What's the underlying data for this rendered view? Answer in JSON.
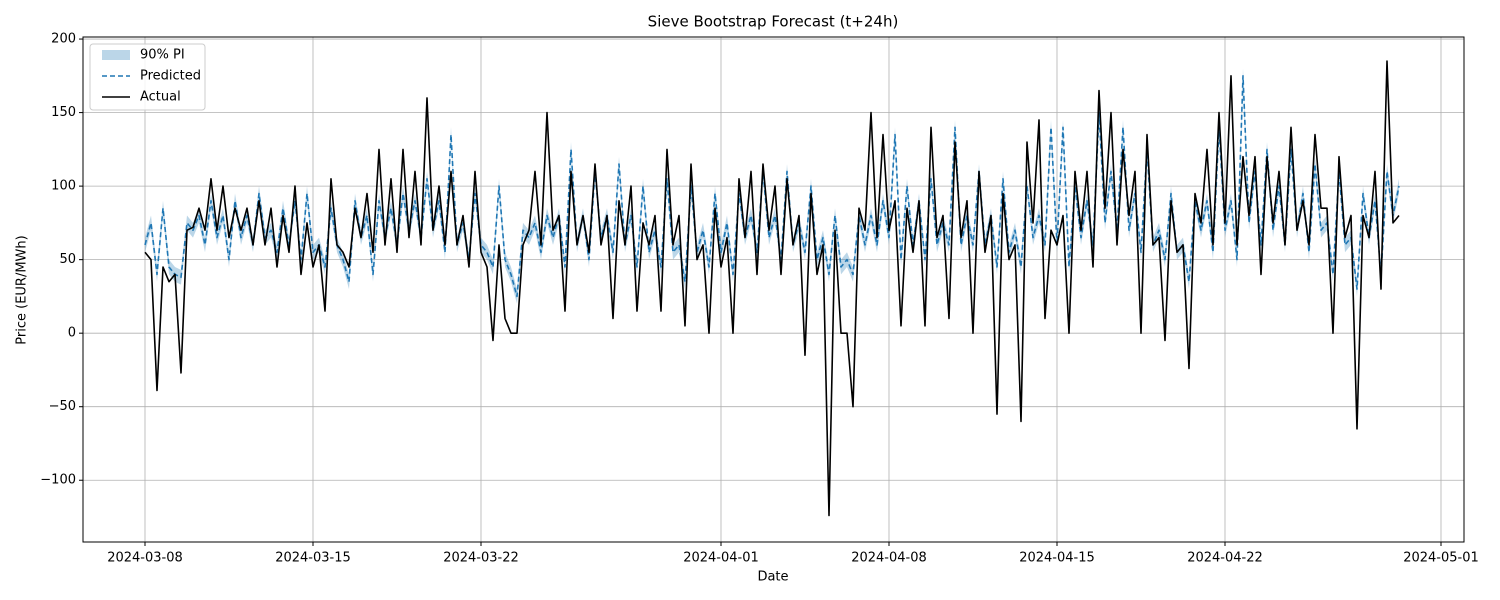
{
  "chart_data": {
    "type": "line",
    "title": "Sieve Bootstrap Forecast (t+24h)",
    "xlabel": "Date",
    "ylabel": "Price (EUR/MWh)",
    "grid": true,
    "legend": "upper left",
    "xlim": [
      "2024-03-05T10",
      "2024-05-01T23"
    ],
    "xticks": [
      "2024-03-08",
      "2024-03-15",
      "2024-03-22",
      "2024-04-01",
      "2024-04-08",
      "2024-04-15",
      "2024-04-22",
      "2024-05-01"
    ],
    "ylim": [
      -142,
      201.4
    ],
    "yticks": [
      {
        "value": -100,
        "label": "−100"
      },
      {
        "value": -50,
        "label": "−50"
      },
      0,
      50,
      100,
      150,
      200
    ],
    "x": [
      "2024-03-08T00",
      "2024-03-08T06",
      "2024-03-08T12",
      "2024-03-08T18",
      "2024-03-09T00",
      "2024-03-09T06",
      "2024-03-09T12",
      "2024-03-09T18",
      "2024-03-10T00",
      "2024-03-10T06",
      "2024-03-10T12",
      "2024-03-10T18",
      "2024-03-11T00",
      "2024-03-11T06",
      "2024-03-11T12",
      "2024-03-11T18",
      "2024-03-12T00",
      "2024-03-12T06",
      "2024-03-12T12",
      "2024-03-12T18",
      "2024-03-13T00",
      "2024-03-13T06",
      "2024-03-13T12",
      "2024-03-13T18",
      "2024-03-14T00",
      "2024-03-14T06",
      "2024-03-14T12",
      "2024-03-14T18",
      "2024-03-15T00",
      "2024-03-15T06",
      "2024-03-15T12",
      "2024-03-15T18",
      "2024-03-16T00",
      "2024-03-16T06",
      "2024-03-16T12",
      "2024-03-16T18",
      "2024-03-17T00",
      "2024-03-17T06",
      "2024-03-17T12",
      "2024-03-17T18",
      "2024-03-18T00",
      "2024-03-18T06",
      "2024-03-18T12",
      "2024-03-18T18",
      "2024-03-19T00",
      "2024-03-19T06",
      "2024-03-19T12",
      "2024-03-19T18",
      "2024-03-20T00",
      "2024-03-20T06",
      "2024-03-20T12",
      "2024-03-20T18",
      "2024-03-21T00",
      "2024-03-21T06",
      "2024-03-21T12",
      "2024-03-21T18",
      "2024-03-22T00",
      "2024-03-22T06",
      "2024-03-22T12",
      "2024-03-22T18",
      "2024-03-23T00",
      "2024-03-23T06",
      "2024-03-23T12",
      "2024-03-23T18",
      "2024-03-24T00",
      "2024-03-24T06",
      "2024-03-24T12",
      "2024-03-24T18",
      "2024-03-25T00",
      "2024-03-25T06",
      "2024-03-25T12",
      "2024-03-25T18",
      "2024-03-26T00",
      "2024-03-26T06",
      "2024-03-26T12",
      "2024-03-26T18",
      "2024-03-27T00",
      "2024-03-27T06",
      "2024-03-27T12",
      "2024-03-27T18",
      "2024-03-28T00",
      "2024-03-28T06",
      "2024-03-28T12",
      "2024-03-28T18",
      "2024-03-29T00",
      "2024-03-29T06",
      "2024-03-29T12",
      "2024-03-29T18",
      "2024-03-30T00",
      "2024-03-30T06",
      "2024-03-30T12",
      "2024-03-30T18",
      "2024-03-31T00",
      "2024-03-31T06",
      "2024-03-31T12",
      "2024-03-31T18",
      "2024-04-01T00",
      "2024-04-01T06",
      "2024-04-01T12",
      "2024-04-01T18",
      "2024-04-02T00",
      "2024-04-02T06",
      "2024-04-02T12",
      "2024-04-02T18",
      "2024-04-03T00",
      "2024-04-03T06",
      "2024-04-03T12",
      "2024-04-03T18",
      "2024-04-04T00",
      "2024-04-04T06",
      "2024-04-04T12",
      "2024-04-04T18",
      "2024-04-05T00",
      "2024-04-05T06",
      "2024-04-05T12",
      "2024-04-05T18",
      "2024-04-06T00",
      "2024-04-06T06",
      "2024-04-06T12",
      "2024-04-06T18",
      "2024-04-07T00",
      "2024-04-07T06",
      "2024-04-07T12",
      "2024-04-07T18",
      "2024-04-08T00",
      "2024-04-08T06",
      "2024-04-08T12",
      "2024-04-08T18",
      "2024-04-09T00",
      "2024-04-09T06",
      "2024-04-09T12",
      "2024-04-09T18",
      "2024-04-10T00",
      "2024-04-10T06",
      "2024-04-10T12",
      "2024-04-10T18",
      "2024-04-11T00",
      "2024-04-11T06",
      "2024-04-11T12",
      "2024-04-11T18",
      "2024-04-12T00",
      "2024-04-12T06",
      "2024-04-12T12",
      "2024-04-12T18",
      "2024-04-13T00",
      "2024-04-13T06",
      "2024-04-13T12",
      "2024-04-13T18",
      "2024-04-14T00",
      "2024-04-14T06",
      "2024-04-14T12",
      "2024-04-14T18",
      "2024-04-15T00",
      "2024-04-15T06",
      "2024-04-15T12",
      "2024-04-15T18",
      "2024-04-16T00",
      "2024-04-16T06",
      "2024-04-16T12",
      "2024-04-16T18",
      "2024-04-17T00",
      "2024-04-17T06",
      "2024-04-17T12",
      "2024-04-17T18",
      "2024-04-18T00",
      "2024-04-18T06",
      "2024-04-18T12",
      "2024-04-18T18",
      "2024-04-19T00",
      "2024-04-19T06",
      "2024-04-19T12",
      "2024-04-19T18",
      "2024-04-20T00",
      "2024-04-20T06",
      "2024-04-20T12",
      "2024-04-20T18",
      "2024-04-21T00",
      "2024-04-21T06",
      "2024-04-21T12",
      "2024-04-21T18",
      "2024-04-22T00",
      "2024-04-22T06",
      "2024-04-22T12",
      "2024-04-22T18",
      "2024-04-23T00",
      "2024-04-23T06",
      "2024-04-23T12",
      "2024-04-23T18",
      "2024-04-24T00",
      "2024-04-24T06",
      "2024-04-24T12",
      "2024-04-24T18",
      "2024-04-25T00",
      "2024-04-25T06",
      "2024-04-25T12",
      "2024-04-25T18",
      "2024-04-26T00",
      "2024-04-26T06",
      "2024-04-26T12",
      "2024-04-26T18",
      "2024-04-27T00",
      "2024-04-27T06",
      "2024-04-27T12",
      "2024-04-27T18",
      "2024-04-28T00",
      "2024-04-28T06",
      "2024-04-28T12",
      "2024-04-28T18",
      "2024-04-29T00",
      "2024-04-29T06"
    ],
    "series": [
      {
        "name": "90% PI",
        "kind": "band",
        "color": "#1f77b4",
        "opacity": 0.3,
        "lower": [
          55,
          70,
          35,
          80,
          40,
          35,
          33,
          70,
          65,
          75,
          55,
          85,
          60,
          75,
          45,
          85,
          60,
          75,
          55,
          90,
          60,
          65,
          50,
          80,
          55,
          85,
          45,
          90,
          50,
          55,
          40,
          80,
          55,
          45,
          30,
          85,
          60,
          75,
          35,
          85,
          60,
          80,
          55,
          90,
          65,
          85,
          60,
          100,
          65,
          85,
          50,
          130,
          55,
          70,
          45,
          90,
          55,
          50,
          40,
          95,
          45,
          35,
          20,
          65,
          60,
          70,
          50,
          75,
          60,
          75,
          40,
          120,
          55,
          75,
          45,
          105,
          60,
          75,
          50,
          110,
          55,
          75,
          40,
          95,
          50,
          65,
          40,
          100,
          50,
          55,
          30,
          95,
          50,
          65,
          40,
          90,
          50,
          70,
          35,
          90,
          60,
          75,
          50,
          105,
          60,
          75,
          45,
          105,
          55,
          70,
          50,
          95,
          45,
          60,
          35,
          75,
          40,
          45,
          35,
          75,
          55,
          75,
          55,
          85,
          60,
          130,
          45,
          95,
          55,
          85,
          45,
          100,
          55,
          70,
          55,
          135,
          55,
          75,
          55,
          105,
          55,
          75,
          40,
          100,
          50,
          65,
          40,
          95,
          60,
          75,
          55,
          135,
          55,
          135,
          40,
          95,
          60,
          85,
          55,
          145,
          70,
          105,
          65,
          135,
          65,
          90,
          50,
          120,
          55,
          65,
          45,
          90,
          50,
          55,
          30,
          85,
          65,
          85,
          50,
          135,
          65,
          85,
          45,
          170,
          70,
          105,
          55,
          120,
          65,
          95,
          55,
          120,
          65,
          90,
          50,
          110,
          65,
          70,
          35,
          105,
          55,
          60,
          25,
          90,
          60,
          85,
          35,
          105,
          75,
          95
        ],
        "upper": [
          65,
          80,
          45,
          90,
          50,
          45,
          43,
          80,
          75,
          85,
          65,
          95,
          70,
          85,
          55,
          95,
          70,
          85,
          65,
          100,
          70,
          75,
          60,
          90,
          65,
          95,
          55,
          100,
          60,
          65,
          50,
          90,
          65,
          55,
          40,
          95,
          70,
          85,
          45,
          95,
          70,
          90,
          65,
          100,
          75,
          95,
          70,
          110,
          75,
          95,
          60,
          140,
          65,
          80,
          55,
          100,
          65,
          60,
          50,
          105,
          55,
          45,
          30,
          75,
          70,
          80,
          60,
          85,
          70,
          85,
          50,
          130,
          65,
          85,
          55,
          115,
          70,
          85,
          60,
          120,
          65,
          85,
          50,
          105,
          60,
          75,
          50,
          110,
          60,
          65,
          40,
          105,
          60,
          75,
          50,
          100,
          60,
          80,
          45,
          100,
          70,
          85,
          60,
          115,
          70,
          85,
          55,
          115,
          65,
          80,
          60,
          105,
          55,
          70,
          45,
          85,
          50,
          55,
          45,
          85,
          65,
          85,
          65,
          95,
          70,
          140,
          55,
          105,
          65,
          95,
          55,
          110,
          65,
          80,
          65,
          145,
          65,
          85,
          65,
          115,
          65,
          85,
          50,
          110,
          60,
          75,
          50,
          105,
          70,
          85,
          65,
          145,
          65,
          145,
          50,
          105,
          70,
          95,
          65,
          155,
          80,
          115,
          75,
          145,
          75,
          100,
          60,
          130,
          65,
          75,
          55,
          100,
          60,
          65,
          40,
          95,
          75,
          95,
          60,
          145,
          75,
          95,
          55,
          180,
          80,
          115,
          65,
          130,
          75,
          105,
          65,
          130,
          75,
          100,
          60,
          120,
          75,
          80,
          45,
          115,
          65,
          70,
          35,
          100,
          70,
          95,
          45,
          115,
          85,
          105
        ]
      },
      {
        "name": "Predicted",
        "kind": "line",
        "dash": true,
        "color": "#1f77b4",
        "values": [
          60,
          75,
          40,
          85,
          45,
          40,
          38,
          75,
          70,
          80,
          60,
          90,
          65,
          80,
          50,
          90,
          65,
          80,
          60,
          95,
          65,
          70,
          55,
          85,
          60,
          90,
          50,
          95,
          55,
          60,
          45,
          85,
          60,
          50,
          35,
          90,
          65,
          80,
          40,
          90,
          65,
          85,
          60,
          95,
          70,
          90,
          65,
          105,
          70,
          90,
          55,
          135,
          60,
          75,
          50,
          95,
          60,
          55,
          45,
          100,
          50,
          40,
          25,
          70,
          65,
          75,
          55,
          80,
          65,
          80,
          45,
          125,
          60,
          80,
          50,
          110,
          65,
          80,
          55,
          115,
          60,
          80,
          45,
          100,
          55,
          70,
          45,
          105,
          55,
          60,
          35,
          100,
          55,
          70,
          45,
          95,
          55,
          75,
          40,
          95,
          65,
          80,
          55,
          110,
          65,
          80,
          50,
          110,
          60,
          75,
          55,
          100,
          50,
          65,
          40,
          80,
          45,
          50,
          40,
          80,
          60,
          80,
          60,
          90,
          65,
          135,
          50,
          100,
          60,
          90,
          50,
          105,
          60,
          75,
          60,
          140,
          60,
          80,
          60,
          110,
          60,
          80,
          45,
          105,
          55,
          70,
          45,
          100,
          65,
          80,
          60,
          140,
          60,
          140,
          45,
          100,
          65,
          90,
          60,
          150,
          75,
          110,
          70,
          140,
          70,
          95,
          55,
          125,
          60,
          70,
          50,
          95,
          55,
          60,
          35,
          90,
          70,
          90,
          55,
          140,
          70,
          90,
          50,
          175,
          75,
          110,
          60,
          125,
          70,
          100,
          60,
          125,
          70,
          95,
          55,
          115,
          70,
          75,
          40,
          110,
          60,
          65,
          30,
          95,
          65,
          90,
          40,
          110,
          80,
          100
        ]
      },
      {
        "name": "Actual",
        "kind": "line",
        "dash": false,
        "color": "#000000",
        "values": [
          55,
          50,
          -39,
          45,
          35,
          40,
          -27,
          70,
          72,
          85,
          70,
          105,
          70,
          100,
          65,
          85,
          70,
          85,
          60,
          90,
          60,
          85,
          45,
          80,
          55,
          100,
          40,
          75,
          45,
          60,
          15,
          105,
          60,
          55,
          45,
          85,
          65,
          95,
          55,
          125,
          60,
          105,
          55,
          125,
          65,
          110,
          60,
          160,
          70,
          100,
          60,
          110,
          60,
          80,
          45,
          110,
          55,
          45,
          -5,
          60,
          10,
          0,
          0,
          60,
          70,
          110,
          60,
          150,
          70,
          80,
          15,
          110,
          60,
          80,
          55,
          115,
          60,
          80,
          10,
          90,
          60,
          100,
          15,
          75,
          60,
          80,
          15,
          125,
          60,
          80,
          5,
          115,
          50,
          60,
          0,
          85,
          45,
          65,
          0,
          105,
          65,
          110,
          40,
          115,
          70,
          100,
          40,
          105,
          60,
          80,
          -15,
          95,
          40,
          60,
          -124,
          70,
          0,
          0,
          -50,
          85,
          70,
          150,
          65,
          135,
          70,
          90,
          5,
          85,
          55,
          90,
          5,
          140,
          65,
          80,
          10,
          130,
          65,
          90,
          0,
          110,
          55,
          80,
          -55,
          95,
          50,
          60,
          -60,
          130,
          75,
          145,
          10,
          70,
          60,
          80,
          0,
          110,
          70,
          110,
          45,
          165,
          85,
          150,
          60,
          125,
          80,
          110,
          0,
          135,
          60,
          65,
          -5,
          90,
          55,
          60,
          -24,
          95,
          75,
          125,
          60,
          150,
          75,
          175,
          60,
          120,
          80,
          120,
          40,
          120,
          75,
          110,
          60,
          140,
          70,
          90,
          60,
          135,
          85,
          85,
          0,
          120,
          65,
          80,
          -65,
          80,
          65,
          110,
          30,
          185,
          75,
          80
        ]
      }
    ]
  }
}
